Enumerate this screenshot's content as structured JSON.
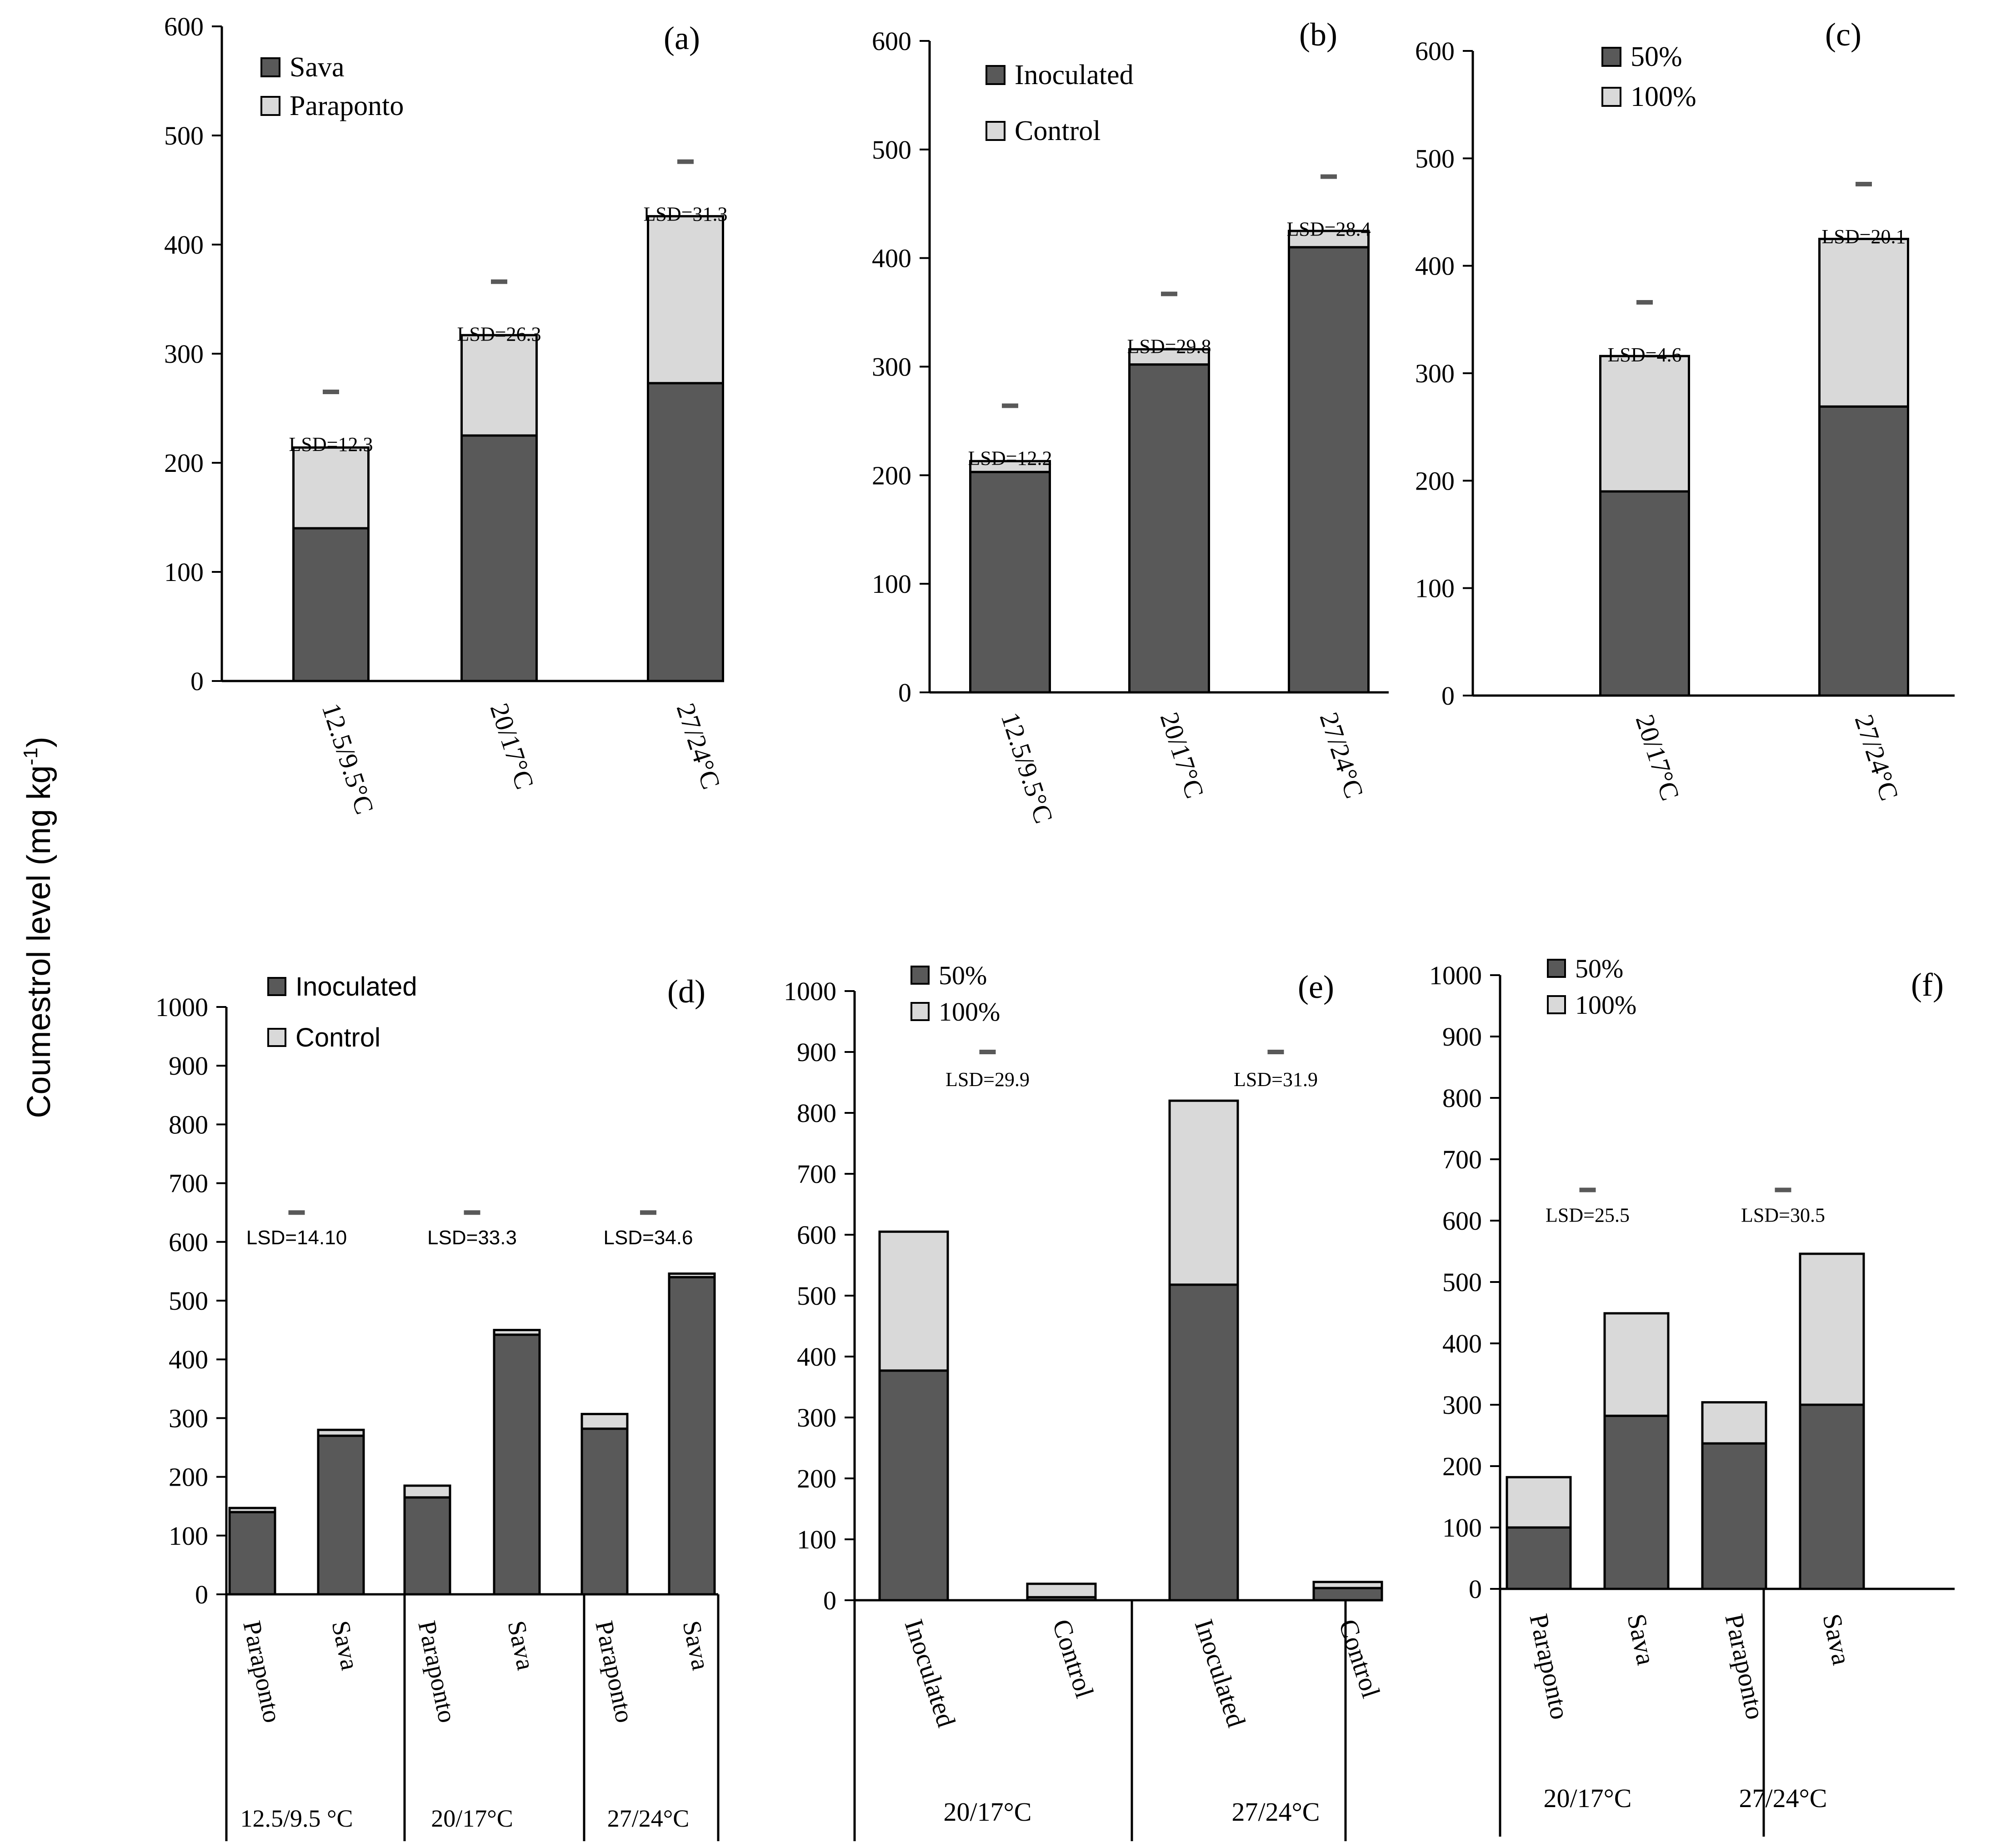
{
  "y_axis_label": "Coumestrol level (mg kg",
  "y_axis_label_sup": "-1",
  "chart_data": [
    {
      "id": "a",
      "panel_label": "(a)",
      "type": "bar",
      "stacked": true,
      "ylim": [
        0,
        600
      ],
      "yticks": [
        0,
        100,
        200,
        300,
        400,
        500,
        600
      ],
      "categories": [
        "12.5/9.5°C",
        "20/17°C",
        "27/24°C"
      ],
      "series": [
        {
          "name": "Sava",
          "color": "#595959",
          "values": [
            140,
            225,
            273
          ]
        },
        {
          "name": "Paraponto",
          "color": "#d9d9d9",
          "values": [
            74,
            92,
            153
          ]
        }
      ],
      "lsd": [
        {
          "label": "LSD=12.3",
          "category": 0,
          "y": 265
        },
        {
          "label": "LSD=26.3",
          "category": 1,
          "y": 366
        },
        {
          "label": "LSD=31.3",
          "category": 2,
          "y": 476
        }
      ],
      "legend_position": "top-left"
    },
    {
      "id": "b",
      "panel_label": "(b)",
      "type": "bar",
      "stacked": true,
      "ylim": [
        0,
        600
      ],
      "yticks": [
        0,
        100,
        200,
        300,
        400,
        500,
        600
      ],
      "categories": [
        "12.5/9.5°C",
        "20/17°C",
        "27/24°C"
      ],
      "series": [
        {
          "name": "Inoculated",
          "color": "#595959",
          "values": [
            203,
            302,
            410
          ]
        },
        {
          "name": "Control",
          "color": "#d9d9d9",
          "values": [
            10,
            14,
            15
          ]
        }
      ],
      "lsd": [
        {
          "label": "LSD=12.2",
          "category": 0,
          "y": 264
        },
        {
          "label": "LSD=29.8",
          "category": 1,
          "y": 367
        },
        {
          "label": "LSD=28.4",
          "category": 2,
          "y": 475
        }
      ],
      "legend_position": "top-left"
    },
    {
      "id": "c",
      "panel_label": "(c)",
      "type": "bar",
      "stacked": true,
      "ylim": [
        0,
        600
      ],
      "yticks": [
        0,
        100,
        200,
        300,
        400,
        500,
        600
      ],
      "categories": [
        "20/17°C",
        "27/24°C"
      ],
      "series": [
        {
          "name": "50%",
          "color": "#595959",
          "values": [
            190,
            269
          ]
        },
        {
          "name": "100%",
          "color": "#d9d9d9",
          "values": [
            126,
            156
          ]
        }
      ],
      "lsd": [
        {
          "label": "LSD=4.6",
          "category": 0,
          "y": 366
        },
        {
          "label": "LSD=20.1",
          "category": 1,
          "y": 476
        }
      ],
      "legend_position": "top-left"
    },
    {
      "id": "d",
      "panel_label": "(d)",
      "type": "bar",
      "stacked": true,
      "ylim": [
        0,
        1000
      ],
      "yticks": [
        0,
        100,
        200,
        300,
        400,
        500,
        600,
        700,
        800,
        900,
        1000
      ],
      "categories": [
        "Paraponto",
        "Sava",
        "Paraponto",
        "Sava",
        "Paraponto",
        "Sava"
      ],
      "groups": [
        {
          "label": "12.5/9.5 °C",
          "span": 2
        },
        {
          "label": "20/17°C",
          "span": 2
        },
        {
          "label": "27/24°C",
          "span": 2
        }
      ],
      "series": [
        {
          "name": "Inoculated",
          "color": "#595959",
          "values": [
            140,
            270,
            165,
            442,
            282,
            540
          ]
        },
        {
          "name": "Control",
          "color": "#d9d9d9",
          "values": [
            7,
            10,
            20,
            8,
            25,
            6
          ]
        }
      ],
      "lsd": [
        {
          "label": "LSD=14.10",
          "group": 0,
          "y": 650
        },
        {
          "label": "LSD=33.3",
          "group": 1,
          "y": 650
        },
        {
          "label": "LSD=34.6",
          "group": 2,
          "y": 650
        }
      ],
      "legend_position": "top-left"
    },
    {
      "id": "e",
      "panel_label": "(e)",
      "type": "bar",
      "stacked": true,
      "ylim": [
        0,
        1000
      ],
      "yticks": [
        0,
        100,
        200,
        300,
        400,
        500,
        600,
        700,
        800,
        900,
        1000
      ],
      "categories": [
        "Inoculated",
        "Control",
        "Inoculated",
        "Control"
      ],
      "groups": [
        {
          "label": "20/17°C",
          "span": 2
        },
        {
          "label": "27/24°C",
          "span": 2
        }
      ],
      "series": [
        {
          "name": "50%",
          "color": "#595959",
          "values": [
            377,
            5,
            518,
            20
          ]
        },
        {
          "name": "100%",
          "color": "#d9d9d9",
          "values": [
            228,
            22,
            302,
            10
          ]
        }
      ],
      "lsd": [
        {
          "label": "LSD=29.9",
          "group": 0,
          "y": 900
        },
        {
          "label": "LSD=31.9",
          "group": 1,
          "y": 900
        }
      ],
      "legend_position": "top-left"
    },
    {
      "id": "f",
      "panel_label": "(f)",
      "type": "bar",
      "stacked": true,
      "ylim": [
        0,
        1000
      ],
      "yticks": [
        0,
        100,
        200,
        300,
        400,
        500,
        600,
        700,
        800,
        900,
        1000
      ],
      "categories": [
        "Paraponto",
        "Sava",
        "Paraponto",
        "Sava"
      ],
      "groups": [
        {
          "label": "20/17°C",
          "span": 2
        },
        {
          "label": "27/24°C",
          "span": 2
        }
      ],
      "series": [
        {
          "name": "50%",
          "color": "#595959",
          "values": [
            100,
            282,
            237,
            300
          ]
        },
        {
          "name": "100%",
          "color": "#d9d9d9",
          "values": [
            82,
            167,
            67,
            246
          ]
        }
      ],
      "lsd": [
        {
          "label": "LSD=25.5",
          "group": 0,
          "y": 650
        },
        {
          "label": "LSD=30.5",
          "group": 1,
          "y": 650
        }
      ],
      "legend_position": "top-left"
    }
  ]
}
